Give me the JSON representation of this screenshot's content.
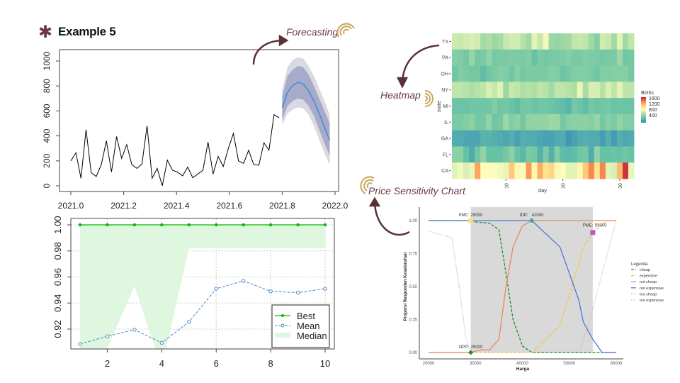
{
  "slide": {
    "title": "Example 5",
    "callouts": {
      "forecasting": "Forecasting",
      "heatmap": "Heatmap",
      "price": "Price Sensitivity Chart"
    },
    "colors": {
      "accent": "#6b3a44",
      "spiral": "#c9a55a"
    }
  },
  "chart_data": [
    {
      "type": "line",
      "title": "",
      "xlim": [
        2021.0,
        2022.0
      ],
      "ylim": [
        0,
        1000
      ],
      "x_ticks": [
        "2021.0",
        "2021.2",
        "2021.4",
        "2021.6",
        "2021.8",
        "2022.0"
      ],
      "y_ticks": [
        "0",
        "200",
        "400",
        "600",
        "800",
        "1000"
      ],
      "history": {
        "x_start": 2021.0,
        "x_step": 0.01923,
        "values": [
          200,
          265,
          60,
          450,
          105,
          75,
          170,
          360,
          110,
          395,
          220,
          330,
          170,
          140,
          175,
          480,
          60,
          140,
          0,
          205,
          125,
          110,
          80,
          150,
          65,
          95,
          125,
          350,
          95,
          235,
          155,
          300,
          420,
          200,
          180,
          285,
          170,
          165,
          345,
          285,
          570,
          545
        ]
      },
      "forecast": {
        "x": [
          2021.8,
          2021.82,
          2021.84,
          2021.86,
          2021.88,
          2021.9,
          2021.92,
          2021.94,
          2021.96,
          2021.98
        ],
        "mean": [
          625,
          750,
          805,
          830,
          815,
          760,
          680,
          580,
          470,
          365
        ],
        "lo80": [
          530,
          640,
          680,
          700,
          690,
          640,
          560,
          450,
          340,
          240
        ],
        "hi80": [
          720,
          880,
          930,
          960,
          950,
          890,
          800,
          700,
          600,
          500
        ],
        "lo95": [
          485,
          580,
          610,
          630,
          620,
          570,
          480,
          370,
          260,
          170
        ],
        "hi95": [
          770,
          950,
          1010,
          1030,
          1020,
          960,
          880,
          780,
          680,
          570
        ]
      },
      "colors": {
        "history": "#000000",
        "mean": "#3a8fd9",
        "band80": "#a7aac9",
        "band95": "#d9d9e2"
      }
    },
    {
      "type": "line",
      "x": [
        1,
        2,
        3,
        4,
        5,
        6,
        7,
        8,
        9,
        10
      ],
      "xlim": [
        0.7,
        10.6
      ],
      "ylim": [
        0.904,
        1.003
      ],
      "x_ticks": [
        "2",
        "4",
        "6",
        "8",
        "10"
      ],
      "y_ticks": [
        "0.92",
        "0.94",
        "0.96",
        "0.98",
        "1.00"
      ],
      "series": [
        {
          "name": "Best",
          "values": [
            1,
            1,
            1,
            1,
            1,
            1,
            1,
            1,
            1,
            1
          ],
          "color": "#00bb00"
        },
        {
          "name": "Mean",
          "values": [
            0.9085,
            0.9145,
            0.9195,
            0.9095,
            0.9255,
            0.951,
            0.957,
            0.949,
            0.948,
            0.951
          ],
          "color": "#4f88c6"
        },
        {
          "name": "Median",
          "values": [
            0.9,
            0.905,
            0.953,
            0.89,
            0.982,
            0.982,
            0.982,
            0.982,
            0.982,
            0.982
          ],
          "color": "#dff6df"
        }
      ],
      "legend": "bottom-right",
      "grid": true
    },
    {
      "type": "heatmap",
      "xlabel": "day",
      "ylabel": "state",
      "x_ticks": [
        "10",
        "20",
        "30"
      ],
      "rows": [
        "TX",
        "PA",
        "OH",
        "NY",
        "MI",
        "IL",
        "GA",
        "FL",
        "CA"
      ],
      "legend_title": "Births",
      "legend_ticks": [
        "1600",
        "1200",
        "800",
        "400"
      ],
      "values": [
        [
          830,
          820,
          840,
          860,
          840,
          720,
          760,
          700,
          730,
          820,
          840,
          840,
          780,
          720,
          880,
          820,
          920,
          700,
          680,
          700,
          720,
          800,
          820,
          800,
          720,
          620,
          840,
          820,
          720,
          880,
          720,
          800
        ],
        [
          610,
          590,
          560,
          680,
          560,
          580,
          660,
          560,
          580,
          580,
          590,
          590,
          580,
          600,
          500,
          580,
          560,
          570,
          580,
          590,
          620,
          570,
          570,
          600,
          590,
          580,
          560,
          570,
          580,
          700,
          540,
          560
        ],
        [
          540,
          600,
          580,
          560,
          560,
          480,
          540,
          580,
          620,
          600,
          540,
          620,
          560,
          580,
          580,
          580,
          580,
          620,
          600,
          520,
          560,
          600,
          600,
          600,
          580,
          540,
          600,
          600,
          620,
          620,
          620,
          560
        ],
        [
          800,
          800,
          780,
          760,
          780,
          800,
          860,
          820,
          880,
          700,
          820,
          800,
          760,
          780,
          760,
          800,
          780,
          720,
          800,
          800,
          780,
          760,
          900,
          740,
          860,
          860,
          780,
          860,
          800,
          880,
          800,
          800
        ],
        [
          520,
          520,
          520,
          540,
          540,
          540,
          540,
          600,
          540,
          560,
          520,
          480,
          560,
          560,
          520,
          540,
          540,
          520,
          500,
          480,
          440,
          560,
          520,
          480,
          560,
          520,
          540,
          560,
          520,
          520,
          520,
          520
        ],
        [
          580,
          580,
          600,
          640,
          560,
          560,
          660,
          540,
          560,
          700,
          600,
          640,
          560,
          660,
          660,
          660,
          660,
          700,
          700,
          560,
          620,
          640,
          640,
          640,
          620,
          680,
          560,
          620,
          580,
          660,
          600,
          600
        ],
        [
          400,
          400,
          380,
          380,
          380,
          440,
          440,
          420,
          400,
          380,
          420,
          360,
          420,
          400,
          400,
          380,
          360,
          360,
          400,
          400,
          320,
          360,
          400,
          420,
          400,
          400,
          340,
          420,
          340,
          420,
          380,
          400
        ],
        [
          640,
          640,
          500,
          400,
          540,
          660,
          500,
          500,
          500,
          560,
          640,
          500,
          460,
          580,
          560,
          420,
          580,
          420,
          600,
          480,
          460,
          480,
          540,
          560,
          400,
          660,
          500,
          500,
          520,
          500,
          540,
          500
        ],
        [
          880,
          920,
          860,
          900,
          1320,
          960,
          960,
          940,
          920,
          900,
          1200,
          1000,
          940,
          1350,
          1000,
          1300,
          1100,
          1150,
          980,
          960,
          880,
          880,
          1000,
          1200,
          1400,
          1100,
          1400,
          880,
          860,
          1250,
          1600,
          900
        ]
      ],
      "color_range": [
        250,
        1650
      ]
    },
    {
      "type": "line",
      "xlabel": "Harga",
      "ylabel": "Proporsi Responden Keseluruhan",
      "xlim": [
        19000,
        61000
      ],
      "ylim": [
        -0.02,
        1.08
      ],
      "x_ticks": [
        "20000",
        "30000",
        "40000",
        "50000",
        "60000"
      ],
      "y_ticks": [
        "0.00",
        "0.25",
        "0.50",
        "0.75",
        "1.00"
      ],
      "range_shade": [
        29000,
        55000
      ],
      "legend_title": "Legenda",
      "series": [
        {
          "name": "cheap",
          "color": "#1e8a2a",
          "style": "dashed",
          "x": [
            20000,
            29000,
            30000,
            33000,
            35000,
            36500,
            38000,
            40000,
            42000,
            60000
          ],
          "y": [
            1,
            1,
            0.99,
            0.98,
            0.93,
            0.6,
            0.25,
            0.05,
            0,
            0
          ]
        },
        {
          "name": "expensive",
          "color": "#f2c443",
          "style": "dashed",
          "x": [
            20000,
            42000,
            45000,
            48000,
            51000,
            53000,
            55000,
            58000,
            60000
          ],
          "y": [
            0,
            0,
            0.1,
            0.2,
            0.55,
            0.8,
            0.91,
            1,
            1
          ]
        },
        {
          "name": "not cheap",
          "color": "#e58a5c",
          "style": "solid",
          "x": [
            20000,
            29000,
            31000,
            33000,
            35000,
            36500,
            38000,
            40000,
            42000,
            60000
          ],
          "y": [
            0,
            0,
            0.02,
            0.02,
            0.1,
            0.5,
            0.8,
            0.96,
            1,
            1
          ]
        },
        {
          "name": "not expensive",
          "color": "#4f75d6",
          "style": "solid",
          "x": [
            20000,
            42000,
            48000,
            51000,
            52000,
            53000,
            55000,
            57000,
            60000
          ],
          "y": [
            1,
            1,
            0.8,
            0.5,
            0.4,
            0.23,
            0.1,
            0,
            0
          ]
        },
        {
          "name": "too cheap",
          "color": "#a6a6e6",
          "style": "dotted",
          "x": [
            20000,
            25000,
            26500,
            28000,
            29000
          ],
          "y": [
            0.92,
            0.87,
            0.5,
            0.1,
            0
          ]
        },
        {
          "name": "too expensive",
          "color": "#e89a9a",
          "style": "dotted",
          "x": [
            52000,
            54000,
            57000,
            60000
          ],
          "y": [
            0,
            0.2,
            0.6,
            1
          ]
        }
      ],
      "points": [
        {
          "label": "PMC:",
          "value": "29000",
          "x": 29000,
          "y": 1,
          "color": "#f0e08a",
          "shape": "square"
        },
        {
          "label": "IDP:",
          "value": "42000",
          "x": 42000,
          "y": 1,
          "color": "#3aa6a6",
          "shape": "diamond"
        },
        {
          "label": "PME:",
          "value": "55000",
          "x": 55000,
          "y": 0.91,
          "color": "#c158c8",
          "shape": "square"
        },
        {
          "label": "OPP:",
          "value": "29000",
          "x": 29000,
          "y": 0,
          "color": "#2a8a3a",
          "shape": "diamond"
        }
      ]
    }
  ]
}
